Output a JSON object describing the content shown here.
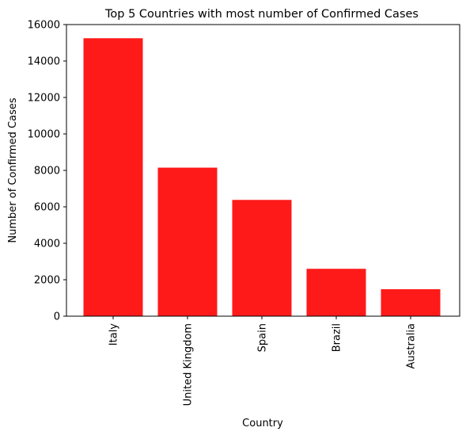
{
  "chart_data": {
    "type": "bar",
    "title": "Top 5 Countries with most number of Confirmed Cases",
    "xlabel": "Country",
    "ylabel": "Number of Confirmed Cases",
    "categories": [
      "Italy",
      "United Kingdom",
      "Spain",
      "Brazil",
      "Australia"
    ],
    "values": [
      15250,
      8150,
      6380,
      2600,
      1480
    ],
    "ylim": [
      0,
      16000
    ],
    "yticks": [
      0,
      2000,
      4000,
      6000,
      8000,
      10000,
      12000,
      14000,
      16000
    ],
    "ytick_labels": [
      "0",
      "2000",
      "4000",
      "6000",
      "8000",
      "10000",
      "12000",
      "14000",
      "16000"
    ],
    "bar_color": "#ff1a1a",
    "grid": false,
    "legend": false
  }
}
